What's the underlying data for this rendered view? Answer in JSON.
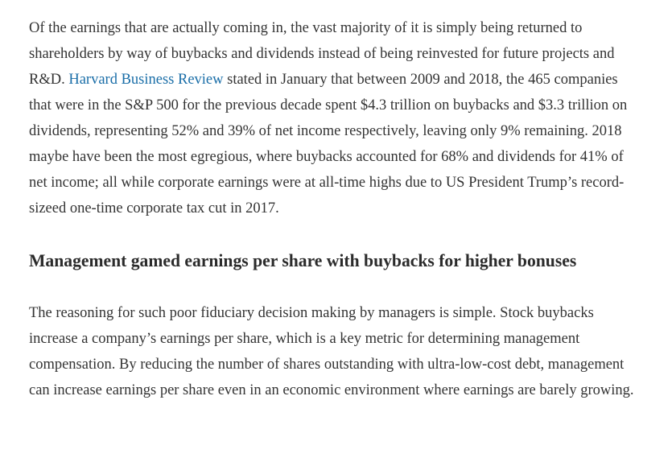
{
  "article": {
    "paragraph1": {
      "before_link": "Of the earnings that are actually coming in, the vast majority of it is simply being returned to shareholders by way of buybacks and dividends instead of being reinvested for future projects and R&D. ",
      "link_text": "Harvard Business Review",
      "after_link": " stated in January that between 2009 and 2018, the 465 companies that were in the S&P 500 for the previous decade spent $4.3 trillion on buybacks and $3.3 trillion on dividends, representing 52% and 39% of net income respectively, leaving only 9% remaining. 2018 maybe have been the most egregious, where buybacks accounted for 68% and dividends for 41% of net income; all while corporate earnings were at all-time highs due to US President Trump’s record-sizeed one-time corporate tax cut in 2017."
    },
    "heading": "Management gamed earnings per share with buybacks for higher bonuses",
    "paragraph2": "The reasoning for such poor fiduciary decision making by managers is simple. Stock buybacks increase a company’s earnings per share, which is a key metric for determining management compensation. By reducing the number of shares outstanding with ultra-low-cost debt, management can increase earnings per share even in an economic environment where earnings are barely growing."
  },
  "colors": {
    "text": "#333333",
    "link": "#1a6ea8",
    "background": "#ffffff"
  }
}
